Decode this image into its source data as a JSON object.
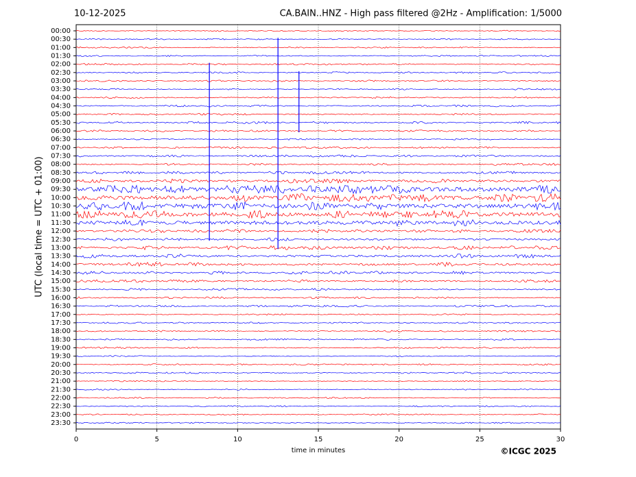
{
  "chart_data": {
    "type": "helicorder",
    "date": "10-12-2025",
    "title": "CA.BAIN..HNZ - High pass filtered @2Hz - Amplification: 1/5000",
    "xlabel": "time in minutes",
    "ylabel": "UTC (local time = UTC + 01:00)",
    "credit": "©ICGC 2025",
    "categories": [
      "00:00",
      "00:30",
      "01:00",
      "01:30",
      "02:00",
      "02:30",
      "03:00",
      "03:30",
      "04:00",
      "04:30",
      "05:00",
      "05:30",
      "06:00",
      "06:30",
      "07:00",
      "07:30",
      "08:00",
      "08:30",
      "09:00",
      "09:30",
      "10:00",
      "10:30",
      "11:00",
      "11:30",
      "12:00",
      "12:30",
      "13:00",
      "13:30",
      "14:00",
      "14:30",
      "15:00",
      "15:30",
      "16:00",
      "16:30",
      "17:00",
      "17:30",
      "18:00",
      "18:30",
      "19:00",
      "19:30",
      "20:00",
      "20:30",
      "21:00",
      "21:30",
      "22:00",
      "22:30",
      "23:00",
      "23:30"
    ],
    "colors": [
      "#ff0000",
      "#0000ff"
    ],
    "amplitude": [
      0.5,
      0.5,
      0.5,
      0.5,
      0.6,
      0.6,
      0.6,
      0.6,
      0.7,
      0.7,
      0.7,
      0.8,
      0.7,
      0.6,
      0.7,
      0.8,
      0.8,
      1.0,
      1.5,
      3.0,
      3.0,
      3.0,
      2.8,
      2.5,
      1.2,
      1.2,
      1.5,
      1.5,
      1.5,
      1.2,
      1.0,
      0.8,
      0.7,
      0.7,
      0.6,
      0.6,
      0.6,
      0.6,
      0.6,
      0.5,
      0.6,
      0.6,
      0.5,
      0.5,
      0.5,
      0.5,
      0.5,
      0.5
    ],
    "events": [
      {
        "x": 8.25,
        "from": 4,
        "to": 25
      },
      {
        "x": 12.5,
        "from": 1,
        "to": 26
      },
      {
        "x": 13.8,
        "from": 5,
        "to": 12
      }
    ],
    "xlim": [
      0,
      30
    ],
    "xticks": [
      0,
      5,
      10,
      15,
      20,
      25,
      30
    ],
    "grid": true
  }
}
